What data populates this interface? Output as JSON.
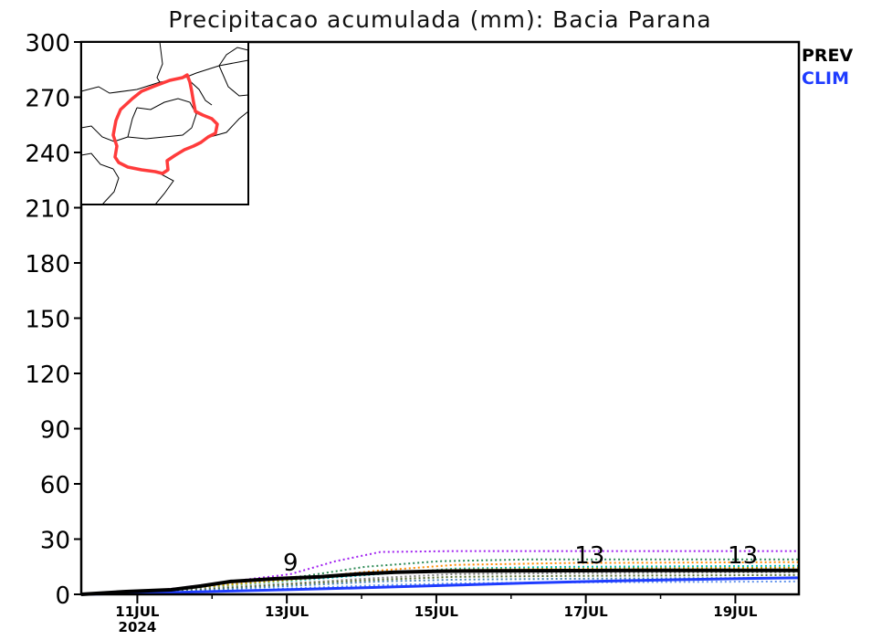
{
  "chart_data": {
    "type": "line",
    "title": "Precipitacao acumulada (mm): Bacia Parana",
    "xlabel": "",
    "ylabel": "",
    "ylim": [
      0,
      300
    ],
    "yticks": [
      0,
      30,
      60,
      90,
      120,
      150,
      180,
      210,
      240,
      270,
      300
    ],
    "xlim": [
      0,
      9.6
    ],
    "xticks": [
      {
        "x": 0.75,
        "label": "11JUL",
        "sublabel": "2024"
      },
      {
        "x": 2.75,
        "label": "13JUL"
      },
      {
        "x": 4.75,
        "label": "15JUL"
      },
      {
        "x": 6.75,
        "label": "17JUL"
      },
      {
        "x": 8.75,
        "label": "19JUL"
      }
    ],
    "grid": false,
    "legend": {
      "placement": "top-right-outside",
      "entries": [
        {
          "label": "PREV",
          "color": "#000000"
        },
        {
          "label": "CLIM",
          "color": "#1f3cff"
        }
      ]
    },
    "series": [
      {
        "name": "PREV",
        "style": "solid",
        "color": "#000000",
        "width": 4,
        "x": [
          0,
          0.6,
          1.2,
          1.6,
          2.0,
          2.6,
          3.2,
          3.7,
          4.2,
          4.8,
          5.5,
          6.5,
          7.5,
          8.5,
          9.6
        ],
        "y": [
          0,
          1.5,
          2.5,
          4.5,
          7,
          8.5,
          9.5,
          11,
          12,
          12.6,
          12.8,
          12.9,
          13,
          13,
          13
        ]
      },
      {
        "name": "CLIM",
        "style": "solid",
        "color": "#1f3cff",
        "width": 3,
        "x": [
          0,
          1.0,
          2.0,
          3.0,
          4.0,
          5.0,
          6.0,
          7.0,
          8.0,
          9.0,
          9.6
        ],
        "y": [
          0,
          0.8,
          1.8,
          2.8,
          3.8,
          5.0,
          6.2,
          7.2,
          8.0,
          8.7,
          9.0
        ]
      }
    ],
    "ensemble": [
      {
        "color": "#a020f0",
        "x": [
          0,
          1.0,
          2.0,
          2.8,
          3.4,
          4.0,
          5.0,
          6.5,
          9.6
        ],
        "y": [
          0,
          2,
          7,
          11,
          18,
          23,
          23.5,
          23.5,
          23.5
        ]
      },
      {
        "color": "#2e8b57",
        "x": [
          0,
          1.0,
          2.0,
          3.0,
          3.8,
          4.8,
          6.0,
          9.6
        ],
        "y": [
          0,
          2,
          6,
          10,
          15,
          18,
          19,
          19
        ]
      },
      {
        "color": "#ff8c00",
        "x": [
          0,
          1.0,
          2.0,
          3.0,
          4.0,
          5.0,
          6.5,
          9.6
        ],
        "y": [
          0,
          1.8,
          5.5,
          9,
          13,
          16,
          17,
          17.5
        ]
      },
      {
        "color": "#00bfbf",
        "x": [
          0,
          1.0,
          2.0,
          3.0,
          4.0,
          5.0,
          6.5,
          9.6
        ],
        "y": [
          0,
          1.5,
          5,
          8,
          11,
          14,
          15,
          15.5
        ]
      },
      {
        "color": "#c8a000",
        "x": [
          0,
          1.0,
          2.0,
          3.0,
          4.0,
          5.0,
          6.5,
          9.6
        ],
        "y": [
          0,
          1.7,
          5.2,
          8.5,
          12,
          13.5,
          14,
          14.5
        ]
      },
      {
        "color": "#808080",
        "x": [
          0,
          1.0,
          2.0,
          3.0,
          4.0,
          5.0,
          6.5,
          9.6
        ],
        "y": [
          0,
          1.2,
          4,
          6.5,
          9,
          11,
          11.5,
          12
        ]
      },
      {
        "color": "#556b2f",
        "x": [
          0,
          1.0,
          2.0,
          3.0,
          4.0,
          5.0,
          6.5,
          9.6
        ],
        "y": [
          0,
          1.0,
          3.5,
          6,
          8,
          9.5,
          10,
          10.5
        ]
      },
      {
        "color": "#4682b4",
        "x": [
          0,
          1.0,
          2.0,
          3.0,
          4.0,
          5.0,
          6.5,
          9.6
        ],
        "y": [
          0,
          0.8,
          3,
          5,
          7,
          8,
          8.5,
          9
        ]
      },
      {
        "color": "#6495ed",
        "x": [
          0,
          1.0,
          2.0,
          3.0,
          4.0,
          5.0,
          6.5,
          9.6
        ],
        "y": [
          0,
          0.5,
          2,
          3.5,
          5,
          6,
          6.5,
          7
        ]
      }
    ],
    "annotations": [
      {
        "text": "9",
        "x": 2.8,
        "y": 9
      },
      {
        "text": "13",
        "x": 6.8,
        "y": 13
      },
      {
        "text": "13",
        "x": 8.85,
        "y": 13
      }
    ]
  },
  "inset_map": {
    "description_color": "#ff3b3b"
  }
}
